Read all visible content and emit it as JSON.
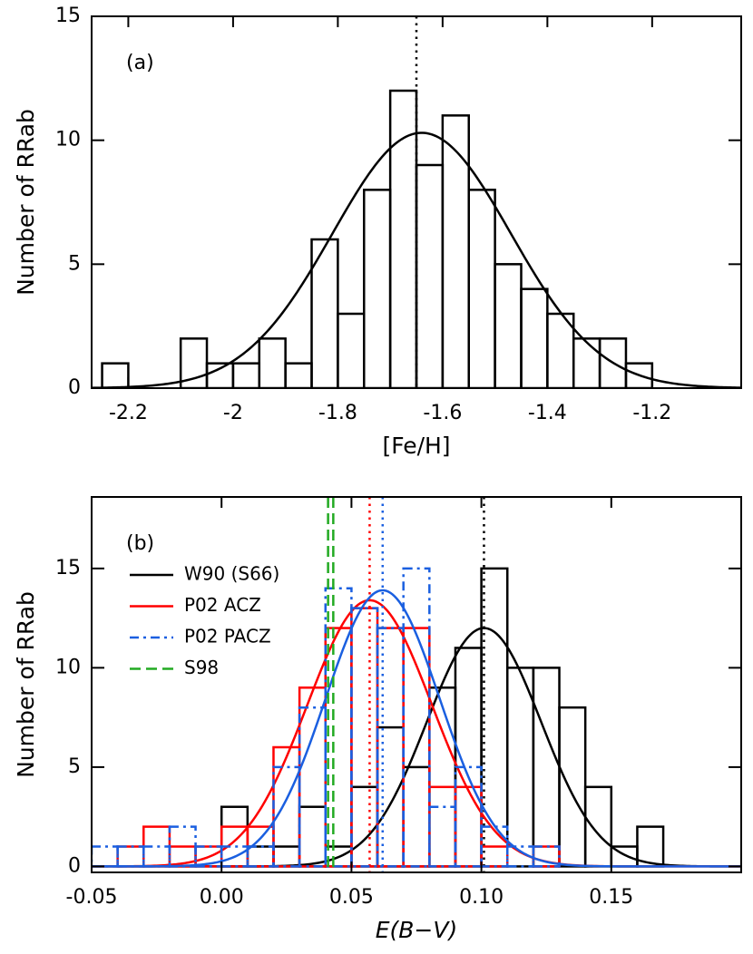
{
  "chart_data": [
    {
      "type": "histogram",
      "label": "(a)",
      "x_label": "[Fe/H]",
      "y_label": "Number of RRab",
      "xlim": [
        -2.27,
        -1.03
      ],
      "ylim": [
        0,
        15
      ],
      "xticks": [
        -2.2,
        -2.0,
        -1.8,
        -1.6,
        -1.4,
        -1.2
      ],
      "yticks": [
        0,
        5,
        10,
        15
      ],
      "series": [
        {
          "color": "#000000",
          "line_style": "solid",
          "bins": [
            -2.25,
            -2.2,
            -2.15,
            -2.1,
            -2.05,
            -2.0,
            -1.95,
            -1.9,
            -1.85,
            -1.8,
            -1.75,
            -1.7,
            -1.65,
            -1.6,
            -1.55,
            -1.5,
            -1.45,
            -1.4,
            -1.35,
            -1.3,
            -1.25,
            -1.2
          ],
          "values": [
            1,
            0,
            0,
            2,
            1,
            1,
            2,
            1,
            6,
            3,
            8,
            12,
            9,
            11,
            8,
            5,
            4,
            3,
            2,
            2,
            1
          ],
          "fit": {
            "mean": -1.64,
            "sigma": 0.17,
            "peak": 10.3
          },
          "mean_line": -1.65
        }
      ]
    },
    {
      "type": "histogram",
      "label": "(b)",
      "x_label": "E(B−V)",
      "y_label": "Number of RRab",
      "xlim": [
        -0.05,
        0.2
      ],
      "ylim": [
        -0.3,
        18.6
      ],
      "xticks": [
        -0.05,
        {
          "value": 0,
          "label": "0.00"
        },
        0.05,
        {
          "value": 0.1,
          "label": "0.10"
        },
        0.15
      ],
      "yticks": [
        0,
        5,
        10,
        15
      ],
      "legend": "upper left",
      "series": [
        {
          "name": "W90 (S66)",
          "color": "#000000",
          "line_style": "solid",
          "bins": [
            0,
            0.01,
            0.02,
            0.03,
            0.04,
            0.05,
            0.06,
            0.07,
            0.08,
            0.09,
            0.1,
            0.11,
            0.12,
            0.13,
            0.14,
            0.15,
            0.16,
            0.17
          ],
          "values": [
            3,
            1,
            1,
            3,
            1,
            4,
            7,
            5,
            9,
            11,
            15,
            10,
            10,
            8,
            4,
            1,
            2
          ],
          "fit": {
            "mean": 0.101,
            "sigma": 0.022,
            "peak": 12
          },
          "mean_line": 0.101
        },
        {
          "name": "P02 ACZ",
          "color": "#ff0000",
          "line_style": "solid",
          "bins": [
            -0.04,
            -0.03,
            -0.02,
            -0.01,
            0,
            0.01,
            0.02,
            0.03,
            0.04,
            0.05,
            0.06,
            0.07,
            0.08,
            0.09,
            0.1,
            0.11,
            0.12,
            0.13
          ],
          "values": [
            1,
            2,
            1,
            1,
            2,
            2,
            6,
            9,
            12,
            13,
            12,
            12,
            4,
            4,
            1,
            0,
            1
          ],
          "fit": {
            "mean": 0.057,
            "sigma": 0.024,
            "peak": 13.4
          },
          "mean_line": 0.057
        },
        {
          "name": "P02 PACZ",
          "color": "#1a5fe0",
          "line_style": "dashdot",
          "fit_style": "solid",
          "bins": [
            -0.05,
            -0.04,
            -0.03,
            -0.02,
            -0.01,
            0,
            0.01,
            0.02,
            0.03,
            0.04,
            0.05,
            0.06,
            0.07,
            0.08,
            0.09,
            0.1,
            0.11,
            0.12,
            0.13
          ],
          "values": [
            1,
            1,
            1,
            2,
            1,
            1,
            1,
            5,
            8,
            14,
            13,
            12,
            15,
            3,
            5,
            2,
            1,
            1
          ],
          "fit": {
            "mean": 0.062,
            "sigma": 0.022,
            "peak": 13.9
          },
          "mean_line": 0.062
        },
        {
          "name": "S98",
          "color": "#22aa22",
          "line_style": "dashed",
          "lines": [
            0.041,
            0.043
          ]
        }
      ]
    }
  ]
}
